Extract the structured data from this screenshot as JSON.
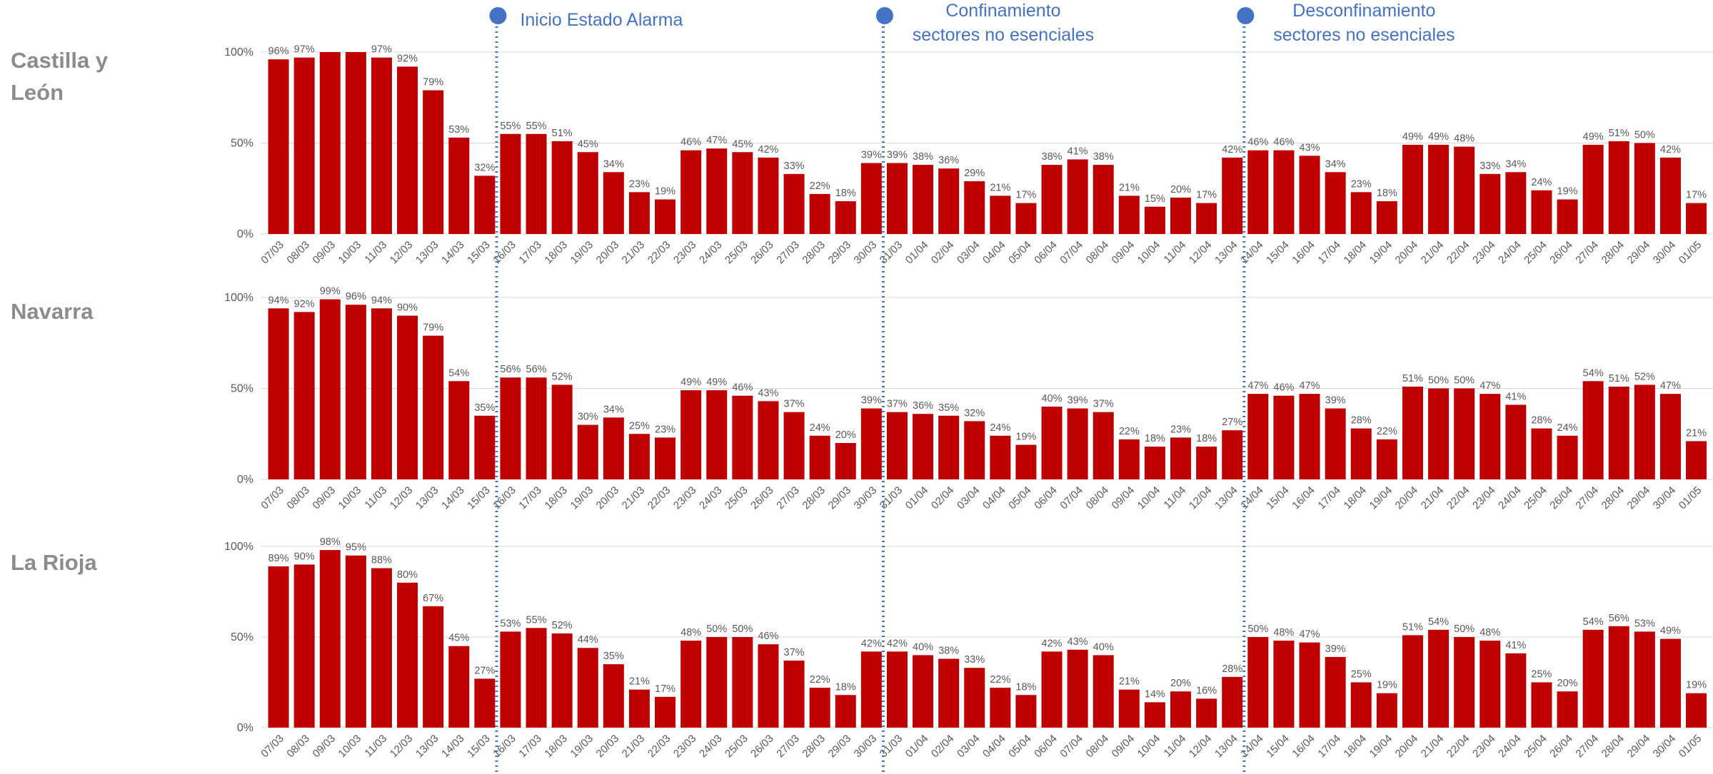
{
  "chart_data": [
    {
      "type": "bar",
      "title": "Castilla y León",
      "title_lines": [
        "Castilla y",
        "León"
      ],
      "categories": [
        "07/03",
        "08/03",
        "09/03",
        "10/03",
        "11/03",
        "12/03",
        "13/03",
        "14/03",
        "15/03",
        "16/03",
        "17/03",
        "18/03",
        "19/03",
        "20/03",
        "21/03",
        "22/03",
        "23/03",
        "24/03",
        "25/03",
        "26/03",
        "27/03",
        "28/03",
        "29/03",
        "30/03",
        "31/03",
        "01/04",
        "02/04",
        "03/04",
        "04/04",
        "05/04",
        "06/04",
        "07/04",
        "08/04",
        "09/04",
        "10/04",
        "11/04",
        "12/04",
        "13/04",
        "14/04",
        "15/04",
        "16/04",
        "17/04",
        "18/04",
        "19/04",
        "20/04",
        "21/04",
        "22/04",
        "23/04",
        "24/04",
        "25/04",
        "26/04",
        "27/04",
        "28/04",
        "29/04",
        "30/04",
        "01/05"
      ],
      "values": [
        96,
        97,
        100,
        100,
        97,
        92,
        79,
        53,
        32,
        55,
        55,
        51,
        45,
        34,
        23,
        19,
        46,
        47,
        45,
        42,
        33,
        22,
        18,
        39,
        39,
        38,
        36,
        29,
        21,
        17,
        38,
        41,
        38,
        21,
        15,
        20,
        17,
        42,
        46,
        46,
        43,
        34,
        23,
        18,
        49,
        49,
        48,
        33,
        34,
        24,
        19,
        49,
        51,
        50,
        42,
        17
      ],
      "data_labels": [
        "96%",
        "97%",
        "",
        "",
        "97%",
        "92%",
        "79%",
        "53%",
        "32%",
        "55%",
        "55%",
        "51%",
        "45%",
        "34%",
        "23%",
        "19%",
        "46%",
        "47%",
        "45%",
        "42%",
        "33%",
        "22%",
        "18%",
        "39%",
        "39%",
        "38%",
        "36%",
        "29%",
        "21%",
        "17%",
        "38%",
        "41%",
        "38%",
        "21%",
        "15%",
        "20%",
        "17%",
        "42%",
        "46%",
        "46%",
        "43%",
        "34%",
        "23%",
        "18%",
        "49%",
        "49%",
        "48%",
        "33%",
        "34%",
        "24%",
        "19%",
        "49%",
        "51%",
        "50%",
        "42%",
        "17%"
      ],
      "ylim": [
        0,
        100
      ],
      "yticks": [
        "0%",
        "50%",
        "100%"
      ],
      "color": "#c00000"
    },
    {
      "type": "bar",
      "title": "Navarra",
      "title_lines": [
        "Navarra"
      ],
      "categories": [
        "07/03",
        "08/03",
        "09/03",
        "10/03",
        "11/03",
        "12/03",
        "13/03",
        "14/03",
        "15/03",
        "16/03",
        "17/03",
        "18/03",
        "19/03",
        "20/03",
        "21/03",
        "22/03",
        "23/03",
        "24/03",
        "25/03",
        "26/03",
        "27/03",
        "28/03",
        "29/03",
        "30/03",
        "31/03",
        "01/04",
        "02/04",
        "03/04",
        "04/04",
        "05/04",
        "06/04",
        "07/04",
        "08/04",
        "09/04",
        "10/04",
        "11/04",
        "12/04",
        "13/04",
        "14/04",
        "15/04",
        "16/04",
        "17/04",
        "18/04",
        "19/04",
        "20/04",
        "21/04",
        "22/04",
        "23/04",
        "24/04",
        "25/04",
        "26/04",
        "27/04",
        "28/04",
        "29/04",
        "30/04",
        "01/05"
      ],
      "values": [
        94,
        92,
        99,
        96,
        94,
        90,
        79,
        54,
        35,
        56,
        56,
        52,
        30,
        34,
        25,
        23,
        49,
        49,
        46,
        43,
        37,
        24,
        20,
        39,
        37,
        36,
        35,
        32,
        24,
        19,
        40,
        39,
        37,
        22,
        18,
        23,
        18,
        27,
        47,
        46,
        47,
        39,
        28,
        22,
        51,
        50,
        50,
        47,
        41,
        28,
        24,
        54,
        51,
        52,
        47,
        21
      ],
      "data_labels": [
        "94%",
        "92%",
        "99%",
        "96%",
        "94%",
        "90%",
        "79%",
        "54%",
        "35%",
        "56%",
        "56%",
        "52%",
        "30%",
        "34%",
        "25%",
        "23%",
        "49%",
        "49%",
        "46%",
        "43%",
        "37%",
        "24%",
        "20%",
        "39%",
        "37%",
        "36%",
        "35%",
        "32%",
        "24%",
        "19%",
        "40%",
        "39%",
        "37%",
        "22%",
        "18%",
        "23%",
        "18%",
        "27%",
        "47%",
        "46%",
        "47%",
        "39%",
        "28%",
        "22%",
        "51%",
        "50%",
        "50%",
        "47%",
        "41%",
        "28%",
        "24%",
        "54%",
        "51%",
        "52%",
        "47%",
        "21%"
      ],
      "ylim": [
        0,
        100
      ],
      "yticks": [
        "0%",
        "50%",
        "100%"
      ],
      "color": "#c00000"
    },
    {
      "type": "bar",
      "title": "La Rioja",
      "title_lines": [
        "La Rioja"
      ],
      "categories": [
        "07/03",
        "08/03",
        "09/03",
        "10/03",
        "11/03",
        "12/03",
        "13/03",
        "14/03",
        "15/03",
        "16/03",
        "17/03",
        "18/03",
        "19/03",
        "20/03",
        "21/03",
        "22/03",
        "23/03",
        "24/03",
        "25/03",
        "26/03",
        "27/03",
        "28/03",
        "29/03",
        "30/03",
        "31/03",
        "01/04",
        "02/04",
        "03/04",
        "04/04",
        "05/04",
        "06/04",
        "07/04",
        "08/04",
        "09/04",
        "10/04",
        "11/04",
        "12/04",
        "13/04",
        "14/04",
        "15/04",
        "16/04",
        "17/04",
        "18/04",
        "19/04",
        "20/04",
        "21/04",
        "22/04",
        "23/04",
        "24/04",
        "25/04",
        "26/04",
        "27/04",
        "28/04",
        "29/04",
        "30/04",
        "01/05"
      ],
      "values": [
        89,
        90,
        98,
        95,
        88,
        80,
        67,
        45,
        27,
        53,
        55,
        52,
        44,
        35,
        21,
        17,
        48,
        50,
        50,
        46,
        37,
        22,
        18,
        42,
        42,
        40,
        38,
        33,
        22,
        18,
        42,
        43,
        40,
        21,
        14,
        20,
        16,
        28,
        50,
        48,
        47,
        39,
        25,
        19,
        51,
        54,
        50,
        48,
        41,
        25,
        20,
        54,
        56,
        53,
        49,
        19
      ],
      "data_labels": [
        "89%",
        "90%",
        "98%",
        "95%",
        "88%",
        "80%",
        "67%",
        "45%",
        "27%",
        "53%",
        "55%",
        "52%",
        "44%",
        "35%",
        "21%",
        "17%",
        "48%",
        "50%",
        "50%",
        "46%",
        "37%",
        "22%",
        "18%",
        "42%",
        "42%",
        "40%",
        "38%",
        "33%",
        "22%",
        "18%",
        "42%",
        "43%",
        "40%",
        "21%",
        "14%",
        "20%",
        "16%",
        "28%",
        "50%",
        "48%",
        "47%",
        "39%",
        "25%",
        "19%",
        "51%",
        "54%",
        "50%",
        "48%",
        "41%",
        "25%",
        "20%",
        "54%",
        "56%",
        "53%",
        "49%",
        "19%"
      ],
      "ylim": [
        0,
        100
      ],
      "yticks": [
        "0%",
        "50%",
        "100%"
      ],
      "color": "#c00000"
    }
  ],
  "annotations": [
    {
      "lines": [
        "Inicio Estado Alarma"
      ],
      "after_category": "15/03",
      "align": "left"
    },
    {
      "lines": [
        "Confinamiento",
        "sectores no esenciales"
      ],
      "after_category": "30/03",
      "align": "center"
    },
    {
      "lines": [
        "Desconfinamiento",
        "sectores no esenciales"
      ],
      "after_category": "13/04",
      "align": "center"
    }
  ],
  "colors": {
    "bars": "#c00000",
    "annotation": "#4472c4",
    "region_name": "#8c8c8c",
    "axis_text": "#595959",
    "grid": "#d9d9d9"
  }
}
